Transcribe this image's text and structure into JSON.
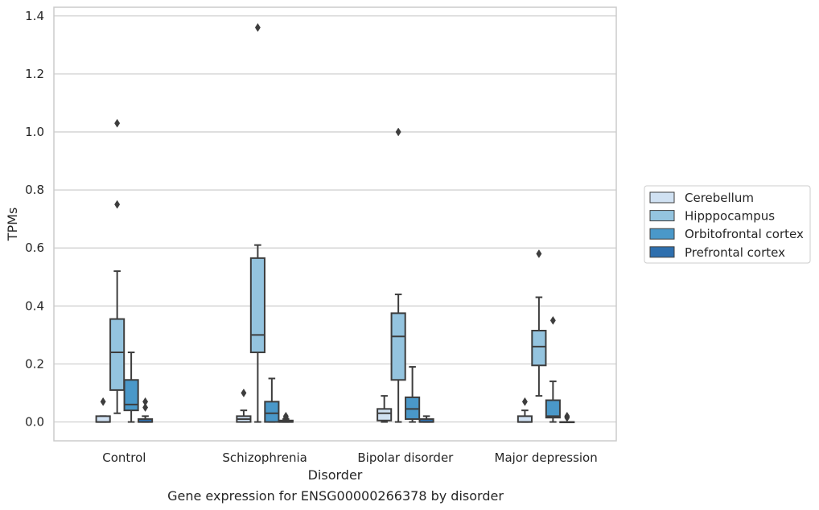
{
  "chart_data": {
    "type": "box",
    "title": "",
    "caption": "Gene expression for ENSG00000266378 by disorder",
    "xlabel": "Disorder",
    "ylabel": "TPMs",
    "ylim": [
      -0.065,
      1.43
    ],
    "yticks": [
      0.0,
      0.2,
      0.4,
      0.6,
      0.8,
      1.0,
      1.2,
      1.4
    ],
    "ytick_labels": [
      "0.0",
      "0.2",
      "0.4",
      "0.6",
      "0.8",
      "1.0",
      "1.2",
      "1.4"
    ],
    "grid": "horizontal",
    "legend_position": "right",
    "categories": [
      "Control",
      "Schizophrenia",
      "Bipolar disorder",
      "Major depression"
    ],
    "series": [
      {
        "name": "Cerebellum",
        "color": "#d0e1f2",
        "boxes": [
          {
            "whisker_low": 0.0,
            "q1": 0.0,
            "median": 0.0,
            "q3": 0.02,
            "whisker_high": 0.02,
            "outliers": [
              0.07
            ]
          },
          {
            "whisker_low": 0.0,
            "q1": 0.0,
            "median": 0.01,
            "q3": 0.02,
            "whisker_high": 0.04,
            "outliers": [
              0.1
            ]
          },
          {
            "whisker_low": 0.0,
            "q1": 0.005,
            "median": 0.03,
            "q3": 0.045,
            "whisker_high": 0.09,
            "outliers": []
          },
          {
            "whisker_low": 0.0,
            "q1": 0.0,
            "median": 0.0,
            "q3": 0.02,
            "whisker_high": 0.04,
            "outliers": [
              0.07
            ]
          }
        ]
      },
      {
        "name": "Hipppocampus",
        "color": "#94c4df",
        "boxes": [
          {
            "whisker_low": 0.03,
            "q1": 0.11,
            "median": 0.24,
            "q3": 0.355,
            "whisker_high": 0.52,
            "outliers": [
              0.75,
              1.03
            ]
          },
          {
            "whisker_low": 0.0,
            "q1": 0.24,
            "median": 0.3,
            "q3": 0.565,
            "whisker_high": 0.61,
            "outliers": [
              1.36
            ]
          },
          {
            "whisker_low": 0.0,
            "q1": 0.145,
            "median": 0.295,
            "q3": 0.375,
            "whisker_high": 0.44,
            "outliers": [
              1.0
            ]
          },
          {
            "whisker_low": 0.09,
            "q1": 0.195,
            "median": 0.26,
            "q3": 0.315,
            "whisker_high": 0.43,
            "outliers": [
              0.58
            ]
          }
        ]
      },
      {
        "name": "Orbitofrontal cortex",
        "color": "#4a98c9",
        "boxes": [
          {
            "whisker_low": 0.0,
            "q1": 0.04,
            "median": 0.06,
            "q3": 0.145,
            "whisker_high": 0.24,
            "outliers": []
          },
          {
            "whisker_low": 0.0,
            "q1": 0.0,
            "median": 0.03,
            "q3": 0.07,
            "whisker_high": 0.15,
            "outliers": []
          },
          {
            "whisker_low": 0.0,
            "q1": 0.01,
            "median": 0.045,
            "q3": 0.085,
            "whisker_high": 0.19,
            "outliers": []
          },
          {
            "whisker_low": 0.0,
            "q1": 0.015,
            "median": 0.02,
            "q3": 0.075,
            "whisker_high": 0.14,
            "outliers": [
              0.35
            ]
          }
        ]
      },
      {
        "name": "Prefrontal cortex",
        "color": "#2e6fae",
        "boxes": [
          {
            "whisker_low": 0.0,
            "q1": 0.0,
            "median": 0.0,
            "q3": 0.01,
            "whisker_high": 0.02,
            "outliers": [
              0.05,
              0.07
            ]
          },
          {
            "whisker_low": 0.0,
            "q1": 0.0,
            "median": 0.0,
            "q3": 0.005,
            "whisker_high": 0.01,
            "outliers": [
              0.015,
              0.02
            ]
          },
          {
            "whisker_low": 0.0,
            "q1": 0.0,
            "median": 0.0,
            "q3": 0.01,
            "whisker_high": 0.02,
            "outliers": []
          },
          {
            "whisker_low": 0.0,
            "q1": 0.0,
            "median": 0.0,
            "q3": 0.0,
            "whisker_high": 0.0,
            "outliers": [
              0.015,
              0.02
            ]
          }
        ]
      }
    ]
  }
}
